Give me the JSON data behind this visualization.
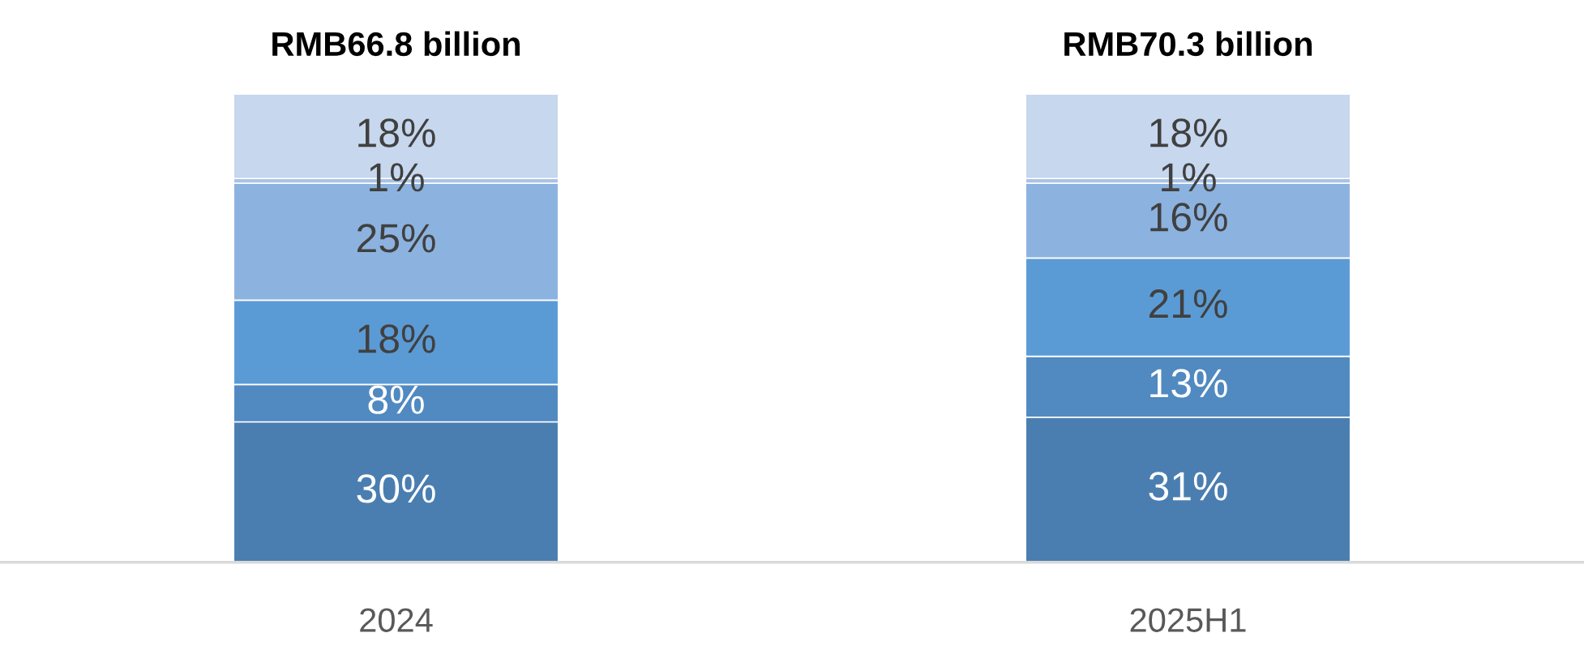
{
  "chart_data": {
    "type": "bar",
    "stacked": true,
    "categories": [
      "2024",
      "2025H1"
    ],
    "totals": [
      "RMB66.8 billion",
      "RMB70.3 billion"
    ],
    "series": [
      {
        "color": "#4a7eb1",
        "values": [
          30,
          31
        ],
        "value_labels": [
          "30%",
          "31%"
        ]
      },
      {
        "color": "#5189c1",
        "values": [
          8,
          13
        ],
        "value_labels": [
          "8%",
          "13%"
        ]
      },
      {
        "color": "#5b9bd5",
        "values": [
          18,
          21
        ],
        "value_labels": [
          "18%",
          "21%"
        ]
      },
      {
        "color": "#8cb2df",
        "values": [
          25,
          16
        ],
        "value_labels": [
          "25%",
          "16%"
        ]
      },
      {
        "color": "#a9c3e6",
        "values": [
          1,
          1
        ],
        "value_labels": [
          "1%",
          "1%"
        ]
      },
      {
        "color": "#c6d7ee",
        "values": [
          18,
          18
        ],
        "value_labels": [
          "18%",
          "18%"
        ]
      }
    ]
  }
}
